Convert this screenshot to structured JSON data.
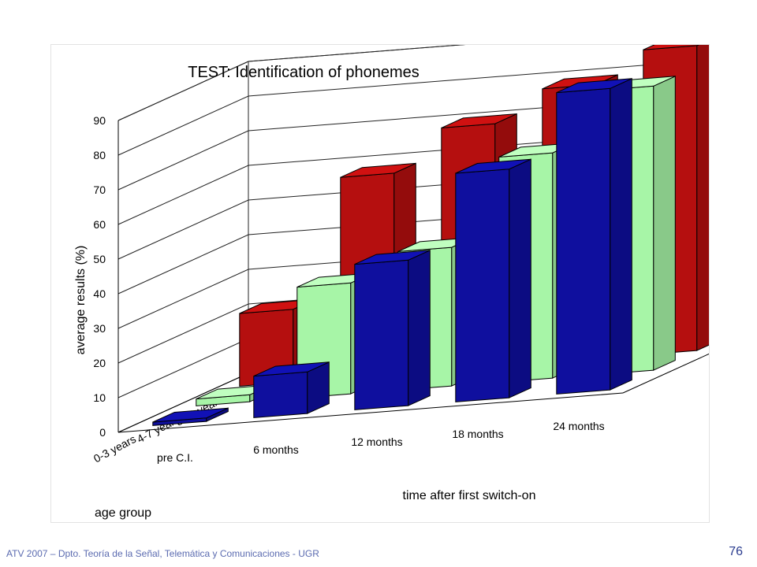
{
  "chart_data": {
    "type": "bar",
    "style": "3d-grouped",
    "title": "TEST: Identification of phonemes",
    "xlabel": "time after first switch-on",
    "ylabel": "average results (%)",
    "zlabel": "age group",
    "categories": [
      "pre C.I.",
      "6 months",
      "12 months",
      "18 months",
      "24 months"
    ],
    "yticks": [
      "0",
      "10",
      "20",
      "30",
      "40",
      "50",
      "60",
      "70",
      "80",
      "90"
    ],
    "ylim": [
      0,
      90
    ],
    "grid": true,
    "series": [
      {
        "name": "8-11 years",
        "color": "#b50f0f",
        "values": [
          21,
          58,
          70,
          79,
          88
        ]
      },
      {
        "name": "4-7 years",
        "color": "#a7f5a7",
        "values": [
          2,
          32,
          40,
          65,
          82
        ]
      },
      {
        "name": "0-3 years",
        "color": "#0f0f9e",
        "values": [
          1,
          12,
          42,
          66,
          87
        ]
      }
    ]
  },
  "footer": {
    "text": "ATV 2007 – Dpto. Teoría de la Señal, Telemática y Comunicaciones - UGR",
    "page_number": "76"
  }
}
